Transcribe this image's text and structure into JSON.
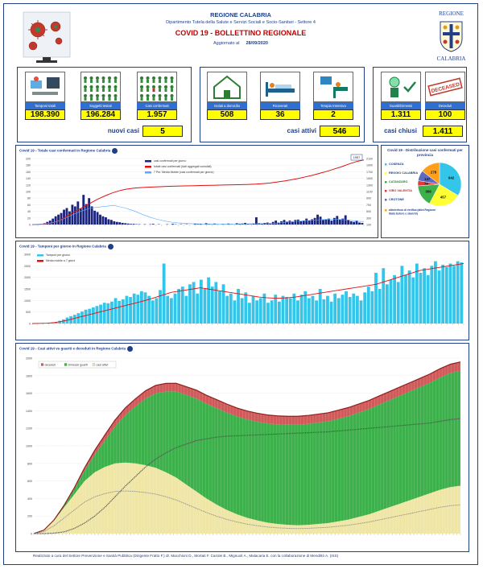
{
  "header": {
    "region": "REGIONE CALABRIA",
    "department": "Dipartimento Tutela della Salute e Servizi Sociali e Socio-Sanitari - Settore 4",
    "title": "COVID 19 - BOLLETTINO REGIONALE",
    "updated_label": "Aggiornato al",
    "updated_date": "28/09/2020",
    "crest_top": "REGIONE",
    "crest_bottom": "CALABRIA"
  },
  "stats": [
    {
      "label": "Tamponi totali",
      "value": "198.390",
      "icon": "lab-microscope-icon"
    },
    {
      "label": "Soggetti testati",
      "value": "196.284",
      "icon": "people-grid-icon"
    },
    {
      "label": "Casi confermati",
      "value": "1.957",
      "icon": "confirmed-people-icon"
    },
    {
      "label": "Isolati a domicilio",
      "value": "508",
      "icon": "house-icon"
    },
    {
      "label": "Ricoverati",
      "value": "36",
      "icon": "hospital-bed-icon"
    },
    {
      "label": "Terapia Intensiva",
      "value": "2",
      "icon": "intensive-care-icon"
    },
    {
      "label": "Guariti/Dimessi",
      "value": "1.311",
      "icon": "recovered-icon"
    },
    {
      "label": "Deceduti",
      "value": "100",
      "icon": "deceased-stamp-icon"
    }
  ],
  "deceased_stamp": "DECEASED",
  "summary": {
    "new_cases_label": "nuovi casi",
    "new_cases_value": "5",
    "active_label": "casi attivi",
    "active_value": "546",
    "closed_label": "casi chiusi",
    "closed_value": "1.411"
  },
  "colors": {
    "navy": "#1f3f8a",
    "bar_blue": "#1a237e",
    "cyan": "#33c6ea",
    "red": "#e01010",
    "green": "#3cb04a",
    "tan": "#efe6a6",
    "yellow": "#ffff00"
  },
  "chart_data": [
    {
      "type": "bar",
      "title": "Covid 19 - Totale casi confermati in Regione Calabria",
      "legend": [
        "casi confermati per giorno",
        "totale casi confermati (dati aggregati cumulati)",
        "7 Per. Media Mobile (casi confermati per giorno)"
      ],
      "total_callout": "1957",
      "y_left": {
        "range": [
          0,
          200
        ],
        "ticks": [
          "200",
          "180",
          "160",
          "140",
          "120",
          "100",
          "80",
          "60",
          "40",
          "20",
          "0"
        ]
      },
      "y_right": {
        "range": [
          0,
          2000
        ],
        "ticks": [
          "2100",
          "1900",
          "1700",
          "1500",
          "1300",
          "1100",
          "900",
          "700",
          "500",
          "300",
          "100"
        ]
      },
      "series": [
        {
          "name": "casi confermati per giorno",
          "values": [
            0,
            1,
            1,
            2,
            4,
            8,
            12,
            18,
            25,
            30,
            35,
            45,
            50,
            40,
            60,
            55,
            70,
            48,
            90,
            62,
            80,
            55,
            42,
            38,
            30,
            25,
            22,
            16,
            14,
            10,
            8,
            7,
            5,
            4,
            3,
            2,
            2,
            1,
            1,
            0,
            1,
            0,
            1,
            2,
            0,
            1,
            0,
            0,
            1,
            0,
            2,
            1,
            0,
            1,
            0,
            1,
            0,
            0,
            3,
            1,
            2,
            0,
            4,
            2,
            1,
            3,
            1,
            0,
            2,
            1,
            3,
            1,
            0,
            4,
            2,
            3,
            5,
            2,
            1,
            3,
            22,
            4,
            3,
            5,
            6,
            4,
            8,
            12,
            6,
            10,
            14,
            9,
            12,
            8,
            14,
            15,
            10,
            11,
            18,
            12,
            16,
            20,
            30,
            24,
            14,
            16,
            18,
            12,
            20,
            26,
            16,
            18,
            28,
            14,
            10,
            8,
            12,
            6,
            5
          ]
        },
        {
          "name": "totale casi confermati (dati aggregati cumulati)",
          "values": [
            0,
            5,
            20,
            60,
            150,
            280,
            400,
            520,
            640,
            760,
            860,
            950,
            1020,
            1070,
            1100,
            1120,
            1130,
            1140,
            1150,
            1160,
            1165,
            1170,
            1175,
            1180,
            1185,
            1190,
            1195,
            1200,
            1205,
            1210,
            1215,
            1225,
            1240,
            1260,
            1290,
            1320,
            1360,
            1400,
            1450,
            1500,
            1560,
            1620,
            1690,
            1760,
            1840,
            1910,
            1957
          ]
        },
        {
          "name": "7 Per. Media Mobile (casi confermati per giorno)",
          "values": [
            0,
            1,
            2,
            4,
            8,
            14,
            22,
            30,
            38,
            44,
            50,
            52,
            54,
            56,
            58,
            54,
            50,
            44,
            38,
            30,
            24,
            18,
            14,
            10,
            7,
            5,
            4,
            3,
            2,
            2,
            1,
            1,
            1,
            1,
            1,
            2,
            2,
            2,
            3,
            2,
            3,
            3,
            4,
            6,
            8,
            10,
            11,
            12,
            13,
            14,
            15,
            16,
            16,
            15,
            14,
            12,
            10,
            9
          ]
        }
      ]
    },
    {
      "type": "pie",
      "title": "Covid 19 - Distribuzione casi confermati per provincia",
      "categories": [
        "COSENZA",
        "REGGIO CALABRIA",
        "CATANZARO",
        "VIBO VALENTIA",
        "CROTONE",
        "altro/refuso di verifica (altra Regione/ Stato Estero e sbarchi)"
      ],
      "values": [
        642,
        457,
        309,
        74,
        147,
        278
      ],
      "shown_labels": [
        "642",
        "457",
        "309",
        "74",
        "147",
        "278"
      ]
    },
    {
      "type": "bar",
      "title": "Covid 19 - Tamponi per giorno in Regione Calabria",
      "legend": [
        "Tamponi per giorno",
        "Media mobile a 7 giorni"
      ],
      "y": {
        "range": [
          0,
          3000
        ],
        "ticks": [
          "3000",
          "2500",
          "2000",
          "1500",
          "1000",
          "500",
          "0"
        ]
      },
      "series": [
        {
          "name": "Tamponi per giorno",
          "values": [
            0,
            0,
            5,
            10,
            20,
            40,
            60,
            120,
            180,
            260,
            320,
            380,
            450,
            520,
            600,
            640,
            700,
            760,
            820,
            900,
            880,
            950,
            1100,
            980,
            1050,
            1200,
            1150,
            1300,
            1250,
            1400,
            1350,
            1200,
            1000,
            1100,
            1450,
            2600,
            1200,
            1100,
            1300,
            1500,
            1600,
            1200,
            1700,
            1800,
            1300,
            1900,
            1500,
            2000,
            1600,
            1800,
            1400,
            1700,
            1200,
            1300,
            1000,
            1500,
            1100,
            1350,
            900,
            1200,
            1000,
            1100,
            1300,
            900,
            1000,
            1250,
            950,
            1200,
            1150,
            1100,
            1300,
            1000,
            1250,
            1400,
            1100,
            1200,
            1000,
            1500,
            1050,
            1200,
            950,
            1300,
            1100,
            1250,
            1400,
            1150,
            1300,
            1200,
            1000,
            1350,
            1600,
            1400,
            2200,
            1500,
            2400,
            1700,
            1900,
            2100,
            1800,
            2500,
            2100,
            2300,
            2000,
            2600,
            2200,
            2400,
            2100,
            2500,
            2700,
            2300,
            2550,
            2450,
            2600,
            2500,
            2700,
            2650
          ]
        },
        {
          "name": "Media mobile a 7 giorni",
          "values": [
            0,
            5,
            15,
            40,
            90,
            160,
            240,
            320,
            400,
            480,
            560,
            640,
            720,
            800,
            880,
            960,
            1050,
            1150,
            1250,
            1350,
            1400,
            1450,
            1500,
            1550,
            1500,
            1450,
            1400,
            1350,
            1300,
            1250,
            1200,
            1150,
            1120,
            1100,
            1100,
            1120,
            1150,
            1200,
            1250,
            1300,
            1350,
            1400,
            1450,
            1500,
            1550,
            1600,
            1650,
            1700,
            1800,
            1900,
            2000,
            2100,
            2200,
            2300,
            2350,
            2400,
            2450,
            2500,
            2550,
            2600
          ]
        }
      ]
    },
    {
      "type": "area",
      "title": "Covid 19 - Casi attivi vs guariti e decedutì in Regione Calabria",
      "legend": [
        "decedutì",
        "Dimessi/ guariti",
        "casi attivi"
      ],
      "y": {
        "range": [
          0,
          2000
        ],
        "ticks": [
          "2000",
          "1800",
          "1600",
          "1400",
          "1200",
          "1000",
          "800",
          "600",
          "400",
          "200",
          "0"
        ]
      },
      "series": [
        {
          "name": "casi attivi",
          "values": [
            0,
            40,
            150,
            300,
            450,
            600,
            700,
            760,
            800,
            810,
            800,
            780,
            750,
            700,
            640,
            560,
            480,
            400,
            330,
            270,
            220,
            180,
            150,
            125,
            110,
            100,
            95,
            100,
            110,
            120,
            140,
            160,
            190,
            220,
            260,
            300,
            340,
            380,
            420,
            460,
            500,
            530,
            546
          ]
        },
        {
          "name": "Dimessi/ guariti",
          "values": [
            0,
            0,
            5,
            20,
            60,
            120,
            200,
            300,
            420,
            540,
            650,
            760,
            850,
            920,
            980,
            1020,
            1060,
            1080,
            1100,
            1110,
            1115,
            1120,
            1125,
            1130,
            1135,
            1140,
            1145,
            1150,
            1155,
            1160,
            1170,
            1180,
            1190,
            1200,
            1210,
            1220,
            1230,
            1240,
            1250,
            1260,
            1280,
            1300,
            1311
          ]
        },
        {
          "name": "decedutì",
          "values": [
            0,
            0,
            2,
            6,
            15,
            30,
            50,
            65,
            75,
            82,
            86,
            88,
            90,
            92,
            94,
            95,
            96,
            96,
            97,
            97,
            97,
            97,
            97,
            97,
            97,
            97,
            97,
            97,
            97,
            98,
            98,
            98,
            98,
            98,
            99,
            99,
            99,
            99,
            99,
            100,
            100,
            100,
            100
          ]
        }
      ]
    }
  ],
  "footer": "Realizzato a cura del Settore Prevenzione e Sanità Pubblica (Dirigente Fratto F.) dr. Macchioni D., Mortati F. Carolei B., Mignuoli A., Malacaria E. con la collaborazione di Mendittò A. (ISS)"
}
